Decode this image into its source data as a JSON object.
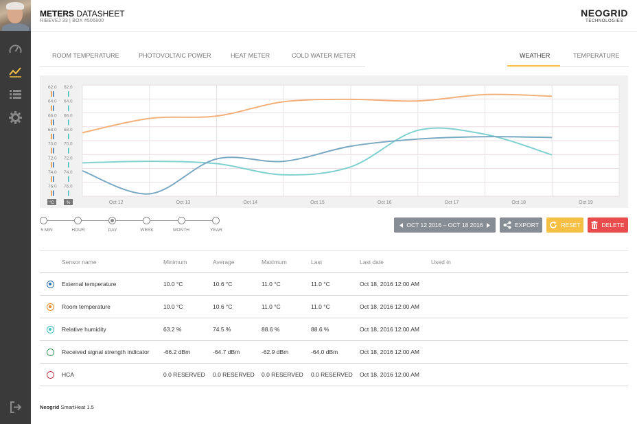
{
  "header": {
    "title_bold": "METERS",
    "title_rest": "DATASHEET",
    "subtitle": "RIBEVEJ 33 | BOX #506800",
    "logo_name": "NEOGRID",
    "logo_sub": "TECHNOLOGIES"
  },
  "sidebar": {
    "items": [
      {
        "icon": "gauge-icon"
      },
      {
        "icon": "chart-line-icon",
        "active": true,
        "color": "#f5c044"
      },
      {
        "icon": "list-icon"
      },
      {
        "icon": "gear-icon"
      }
    ],
    "bottom_icon": "logout-icon"
  },
  "tabs": {
    "left": [
      "ROOM TEMPERATURE",
      "PHOTOVOLTAIC POWER",
      "HEAT METER",
      "COLD WATER METER"
    ],
    "right": [
      "WEATHER",
      "TEMPERATURE"
    ],
    "active": "WEATHER"
  },
  "chart_data": {
    "type": "line",
    "x": [
      "Oct 12",
      "Oct 13",
      "Oct 14",
      "Oct 15",
      "Oct 16",
      "Oct 17",
      "Oct 18",
      "Oct 19"
    ],
    "axis_left_ticks": [
      "62.0",
      "64.0",
      "66.0",
      "68.0",
      "70.0",
      "72.0",
      "74.0",
      "76.0"
    ],
    "axis_right_ticks": [
      "62.0",
      "64.0",
      "66.0",
      "68.0",
      "70.0",
      "72.0",
      "74.0",
      "76.0"
    ],
    "axis_left_unit": "°C",
    "axis_right_unit": "%",
    "ylim": [
      62,
      76
    ],
    "grid": true,
    "series": [
      {
        "color": "#f4b07a",
        "values": [
          68.0,
          66.2,
          65.9,
          64.1,
          63.8,
          64.0,
          63.2,
          63.4
        ]
      },
      {
        "color": "#7fd1cf",
        "values": [
          71.8,
          71.6,
          71.9,
          73.3,
          72.3,
          67.7,
          68.2,
          70.8
        ]
      },
      {
        "color": "#79a8c3",
        "values": [
          72.8,
          75.7,
          71.3,
          71.6,
          69.7,
          68.8,
          68.5,
          68.6
        ]
      }
    ]
  },
  "ranges": {
    "items": [
      "5 MIN",
      "HOUR",
      "DAY",
      "WEEK",
      "MONTH",
      "YEAR"
    ],
    "selected": "DAY"
  },
  "buttons": {
    "date_range": "OCT 12 2016 – OCT 18 2016",
    "export": "EXPORT",
    "reset": "RESET",
    "delete": "DELETE",
    "colors": {
      "date": "#878d94",
      "export": "#878d94",
      "reset": "#f5c044",
      "delete": "#e84c4c"
    }
  },
  "table": {
    "columns": [
      "Sensor name",
      "Minimum",
      "Average",
      "Maximum",
      "Last",
      "Last date",
      "Used in"
    ],
    "rows": [
      {
        "radio_color": "#2f6fb0",
        "checked": true,
        "name": "External temperature",
        "min": "10.0 °C",
        "avg": "10.6 °C",
        "max": "11.0 °C",
        "last": "11.0 °C",
        "date": "Oct 18, 2016 12:00 AM"
      },
      {
        "radio_color": "#e88a2d",
        "checked": true,
        "name": "Room temperature",
        "min": "10.0 °C",
        "avg": "10.6 °C",
        "max": "11.0 °C",
        "last": "11.0 °C",
        "date": "Oct 18, 2016 12:00 AM"
      },
      {
        "radio_color": "#3fbfbf",
        "checked": true,
        "name": "Relative humidity",
        "min": "63.2 %",
        "avg": "74.5 %",
        "max": "88.6 %",
        "last": "88.6 %",
        "date": "Oct 18, 2016 12:00 AM"
      },
      {
        "radio_color": "#3a9a5a",
        "checked": false,
        "name": "Received signal strength indicator",
        "min": "-66.2 dBm",
        "avg": "-64.7 dBm",
        "max": "-62.9 dBm",
        "last": "-64.0 dBm",
        "date": "Oct 18, 2016 12:00 AM"
      },
      {
        "radio_color": "#c0394b",
        "checked": false,
        "name": "HCA",
        "min": "0.0 RESERVED",
        "avg": "0.0 RESERVED",
        "max": "0.0 RESERVED",
        "last": "0.0 RESERVED",
        "date": "Oct 18, 2016 12:00 AM"
      }
    ]
  },
  "footer": {
    "brand": "Neogrid",
    "product": "SmartHeat 1.5"
  }
}
